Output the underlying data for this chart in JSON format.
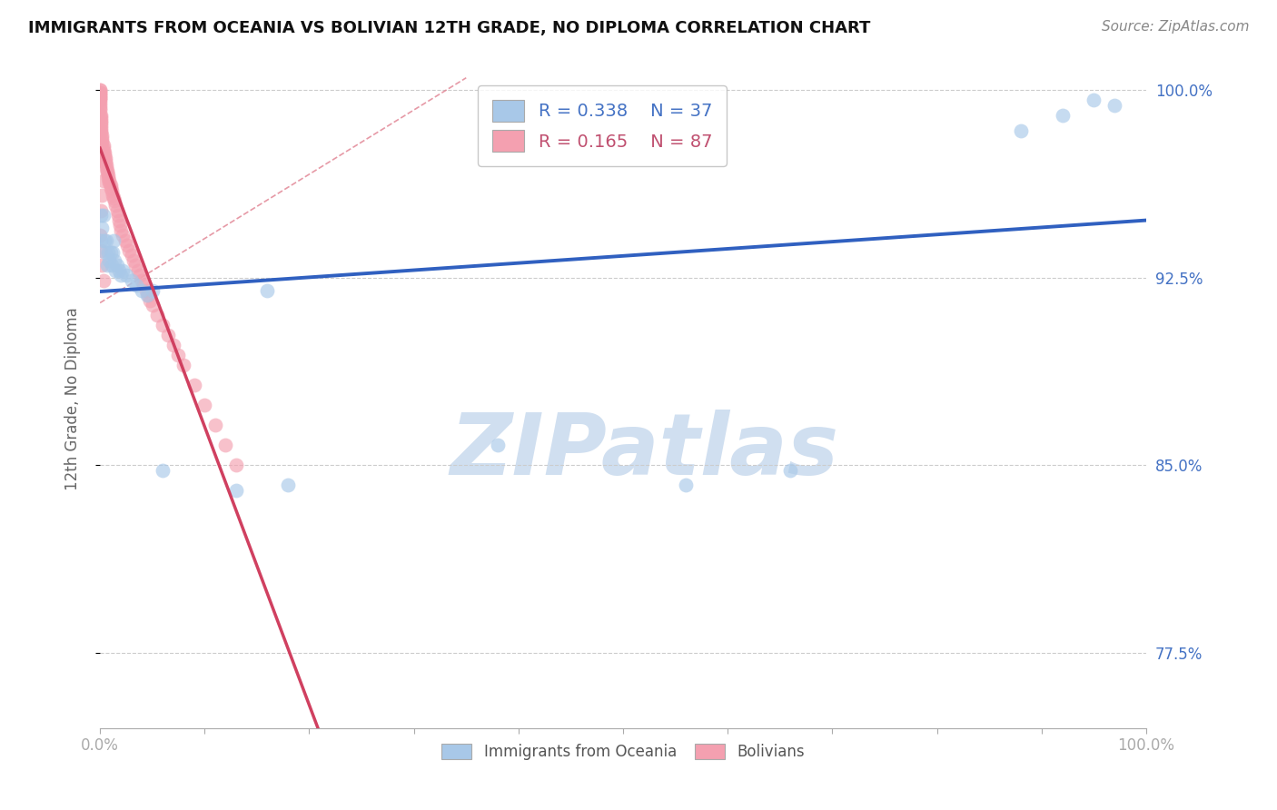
{
  "title": "IMMIGRANTS FROM OCEANIA VS BOLIVIAN 12TH GRADE, NO DIPLOMA CORRELATION CHART",
  "source": "Source: ZipAtlas.com",
  "ylabel": "12th Grade, No Diploma",
  "xlim": [
    0.0,
    1.0
  ],
  "ylim": [
    0.745,
    1.008
  ],
  "yticks": [
    0.775,
    0.85,
    0.925,
    1.0
  ],
  "ytick_labels": [
    "77.5%",
    "85.0%",
    "92.5%",
    "100.0%"
  ],
  "R_blue": 0.338,
  "N_blue": 37,
  "R_pink": 0.165,
  "N_pink": 87,
  "blue_color": "#a8c8e8",
  "pink_color": "#f4a0b0",
  "blue_line_color": "#3060c0",
  "pink_line_color": "#d04060",
  "dash_line_color": "#e08090",
  "watermark": "ZIPatlas",
  "watermark_color": "#d0dff0",
  "background_color": "#ffffff",
  "grid_color": "#cccccc",
  "blue_x": [
    0.001,
    0.001,
    0.002,
    0.003,
    0.004,
    0.005,
    0.006,
    0.007,
    0.008,
    0.009,
    0.01,
    0.011,
    0.012,
    0.013,
    0.014,
    0.015,
    0.016,
    0.018,
    0.02,
    0.022,
    0.025,
    0.03,
    0.035,
    0.04,
    0.045,
    0.05,
    0.06,
    0.13,
    0.16,
    0.18,
    0.38,
    0.56,
    0.66,
    0.88,
    0.92,
    0.95,
    0.97
  ],
  "blue_y": [
    0.94,
    0.95,
    0.945,
    0.95,
    0.94,
    0.935,
    0.94,
    0.93,
    0.935,
    0.932,
    0.935,
    0.93,
    0.935,
    0.94,
    0.932,
    0.928,
    0.93,
    0.928,
    0.926,
    0.928,
    0.926,
    0.924,
    0.922,
    0.92,
    0.918,
    0.92,
    0.848,
    0.84,
    0.92,
    0.842,
    0.858,
    0.842,
    0.848,
    0.984,
    0.99,
    0.996,
    0.994
  ],
  "pink_x": [
    0.0,
    0.0,
    0.0,
    0.0,
    0.0,
    0.0,
    0.0,
    0.0,
    0.0,
    0.0,
    0.0,
    0.0,
    0.0,
    0.0,
    0.001,
    0.001,
    0.001,
    0.001,
    0.001,
    0.001,
    0.001,
    0.001,
    0.002,
    0.002,
    0.002,
    0.002,
    0.003,
    0.003,
    0.003,
    0.004,
    0.004,
    0.005,
    0.005,
    0.005,
    0.006,
    0.006,
    0.007,
    0.007,
    0.008,
    0.008,
    0.009,
    0.009,
    0.01,
    0.01,
    0.011,
    0.012,
    0.013,
    0.014,
    0.015,
    0.016,
    0.017,
    0.018,
    0.019,
    0.02,
    0.022,
    0.024,
    0.026,
    0.028,
    0.03,
    0.032,
    0.034,
    0.036,
    0.038,
    0.04,
    0.042,
    0.044,
    0.046,
    0.048,
    0.05,
    0.055,
    0.06,
    0.065,
    0.07,
    0.075,
    0.08,
    0.09,
    0.1,
    0.11,
    0.12,
    0.13,
    0.001,
    0.002,
    0.003,
    0.0,
    0.001,
    0.002,
    0.003
  ],
  "pink_y": [
    1.0,
    1.0,
    0.999,
    0.999,
    0.998,
    0.998,
    0.997,
    0.997,
    0.996,
    0.995,
    0.994,
    0.993,
    0.992,
    0.99,
    0.99,
    0.989,
    0.988,
    0.987,
    0.986,
    0.985,
    0.984,
    0.983,
    0.982,
    0.981,
    0.98,
    0.979,
    0.978,
    0.977,
    0.976,
    0.975,
    0.974,
    0.973,
    0.972,
    0.971,
    0.97,
    0.969,
    0.968,
    0.967,
    0.966,
    0.965,
    0.964,
    0.963,
    0.962,
    0.961,
    0.96,
    0.958,
    0.957,
    0.956,
    0.954,
    0.952,
    0.95,
    0.948,
    0.946,
    0.944,
    0.942,
    0.94,
    0.938,
    0.936,
    0.934,
    0.932,
    0.93,
    0.928,
    0.926,
    0.924,
    0.922,
    0.92,
    0.918,
    0.916,
    0.914,
    0.91,
    0.906,
    0.902,
    0.898,
    0.894,
    0.89,
    0.882,
    0.874,
    0.866,
    0.858,
    0.85,
    0.952,
    0.958,
    0.964,
    0.942,
    0.936,
    0.93,
    0.924
  ]
}
